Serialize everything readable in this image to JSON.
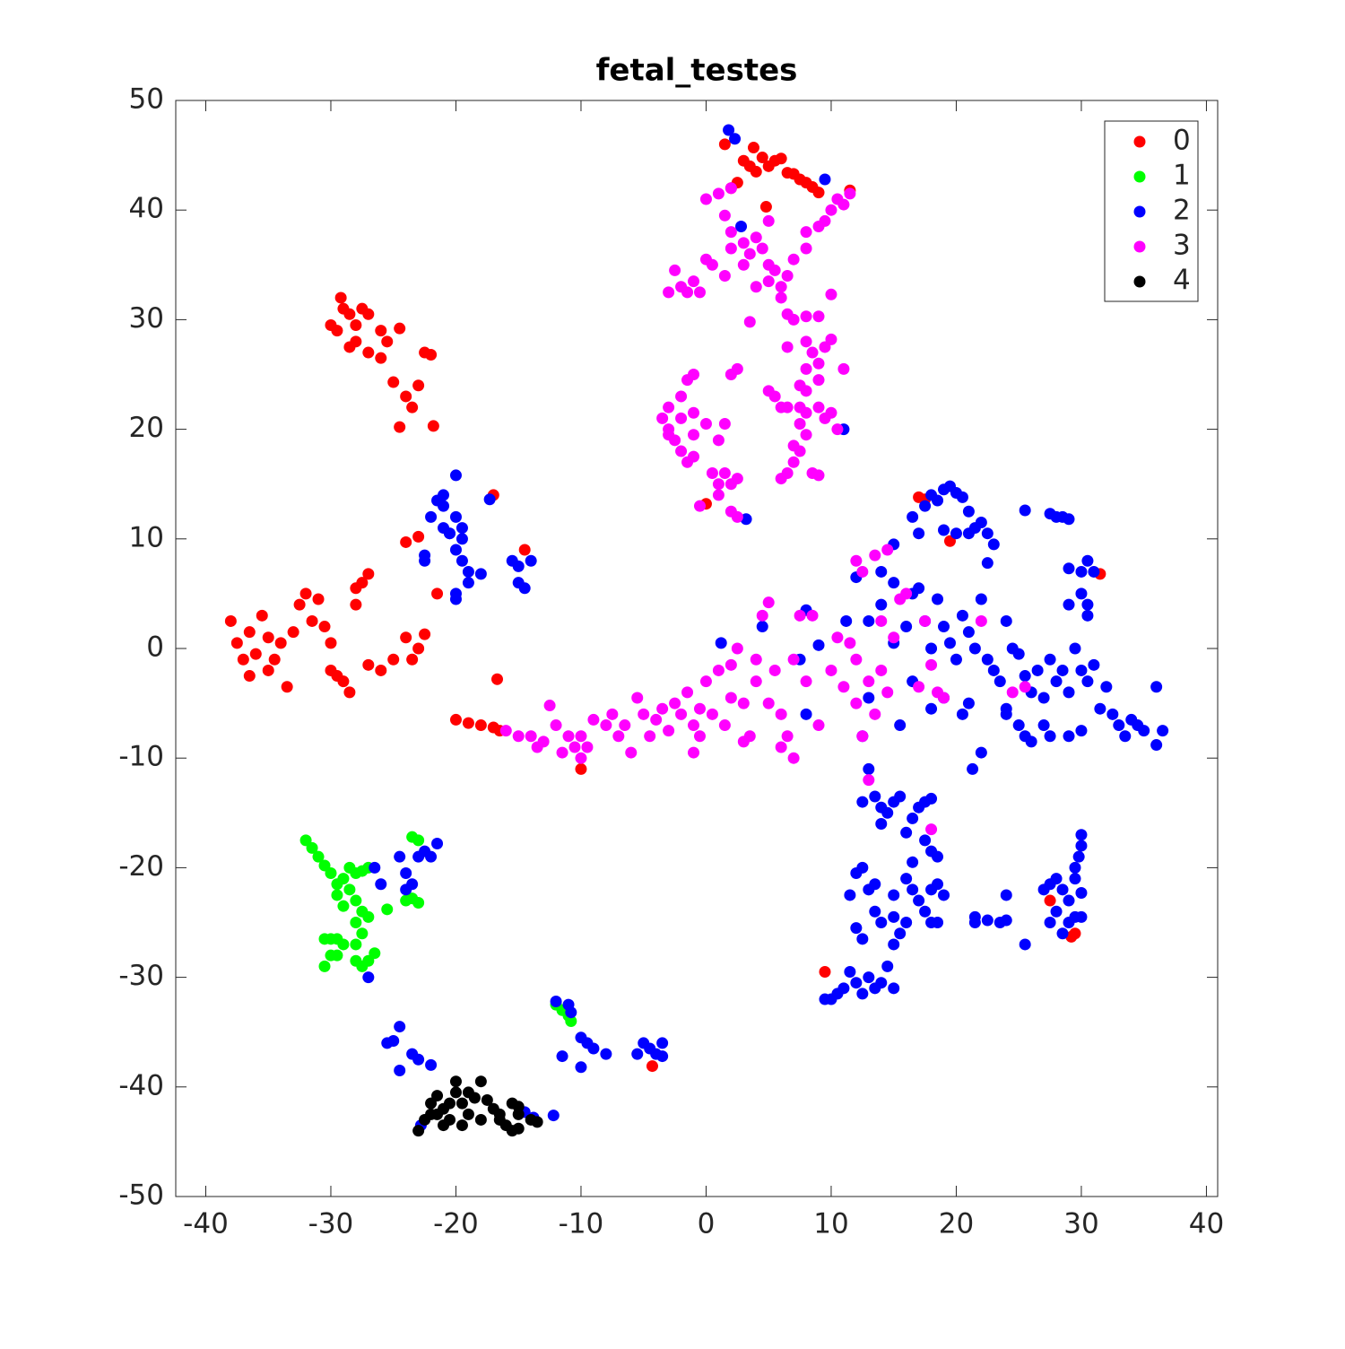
{
  "chart_data": {
    "type": "scatter",
    "title": "fetal_testes",
    "xlim": [
      -42.4,
      40.9
    ],
    "ylim": [
      -50,
      50
    ],
    "xticks": [
      -40,
      -30,
      -20,
      -10,
      0,
      10,
      20,
      30,
      40
    ],
    "yticks": [
      -50,
      -40,
      -30,
      -20,
      -10,
      0,
      10,
      20,
      30,
      40,
      50
    ],
    "grid": false,
    "legend": "upper right",
    "series": [
      {
        "name": "0",
        "color": "#ff0000",
        "x": [
          -29,
          -28.5,
          -28,
          -27.5,
          -29.5,
          -28,
          -27,
          -26,
          -25.5,
          -26,
          -24.5,
          -25,
          -24,
          -23.5,
          -23,
          -22.5,
          -22,
          -21.8,
          -24.5,
          -29.2,
          -30,
          -27,
          -28.5,
          -38,
          -37.5,
          -37,
          -36.5,
          -36,
          -35.5,
          -35,
          -34.5,
          -34,
          -33.5,
          -33,
          -32.5,
          -32,
          -31,
          -30.5,
          -30,
          -29.5,
          -29,
          -28.5,
          -28,
          -27.5,
          -27,
          -28,
          -27,
          -26,
          -25,
          -24,
          -23.5,
          -23,
          -22.5,
          -36.5,
          -35,
          -31.5,
          -30,
          -24,
          -23,
          -21.5,
          -17,
          -14.5,
          -16.7,
          -20,
          -19,
          -18,
          -17,
          -16.5,
          -10,
          0,
          17,
          17.5,
          19.5,
          31.5,
          27.5,
          29.5,
          29.2,
          9.5,
          -4.3,
          1.5,
          3.8,
          3,
          3.5,
          4,
          4.5,
          5,
          5.5,
          6,
          6.5,
          7,
          7.5,
          8,
          8.5,
          2,
          2.5,
          4.8,
          11.5,
          9
        ],
        "y": [
          31,
          30.5,
          29.5,
          31,
          29,
          28,
          30.5,
          29,
          28,
          26.5,
          29.2,
          24.3,
          23,
          22,
          24,
          27,
          26.8,
          20.3,
          20.2,
          32,
          29.5,
          27,
          27.5,
          2.5,
          0.5,
          -1,
          1.5,
          -0.5,
          3,
          1,
          -1,
          0.5,
          -3.5,
          1.5,
          4,
          5,
          4.5,
          2,
          0.5,
          -2.5,
          -3,
          -4,
          5.5,
          6,
          6.8,
          4,
          -1.5,
          -2,
          -1,
          1,
          -1,
          0,
          1.3,
          -2.5,
          -2,
          2.5,
          -2,
          9.7,
          10.2,
          5,
          14,
          9,
          -2.8,
          -6.5,
          -6.8,
          -7,
          -7.2,
          -7.5,
          -11,
          13.2,
          13.8,
          13.6,
          9.8,
          6.8,
          -23,
          -26,
          -26.3,
          -29.5,
          -38.1,
          46,
          45.7,
          44.5,
          44,
          43.5,
          44.8,
          44,
          44.5,
          44.7,
          43.4,
          43.3,
          42.8,
          42.5,
          42.1,
          42,
          42.5,
          40.3,
          41.8,
          41.6
        ]
      },
      {
        "name": "1",
        "color": "#00ff00",
        "x": [
          -32,
          -31.5,
          -31,
          -30.5,
          -30,
          -29.5,
          -29,
          -28.5,
          -28,
          -27.5,
          -27,
          -29.5,
          -29,
          -28.5,
          -28,
          -27.5,
          -27,
          -28,
          -27.5,
          -28,
          -29,
          -29.5,
          -30,
          -30.5,
          -30,
          -30.5,
          -29.5,
          -28,
          -27.5,
          -27,
          -26.5,
          -25.5,
          -24,
          -23.5,
          -23,
          -23.5,
          -23,
          -12,
          -11.5,
          -11,
          -10.8
        ],
        "y": [
          -17.5,
          -18.2,
          -19,
          -19.8,
          -20.5,
          -21.5,
          -21,
          -20,
          -20.5,
          -20.3,
          -20,
          -22.5,
          -23.5,
          -22,
          -23,
          -24,
          -24.5,
          -25,
          -26,
          -27,
          -27,
          -26.5,
          -26.5,
          -26.5,
          -28,
          -29,
          -28,
          -28.5,
          -29,
          -28.5,
          -27.8,
          -23.8,
          -23,
          -22.8,
          -23.2,
          -17.2,
          -17.5,
          -32.5,
          -33,
          -33.5,
          -34
        ]
      },
      {
        "name": "2",
        "color": "#0000ff",
        "x": [
          1.8,
          2.3,
          9.5,
          2.8,
          11,
          3.2,
          -22,
          -21.5,
          -21,
          -21,
          -20.5,
          -20,
          -20,
          -19.5,
          -19.5,
          -19,
          -19,
          -20,
          -20,
          -20,
          -21,
          -22.5,
          -22.5,
          -18,
          -17.3,
          -15.5,
          -15,
          -14,
          -15,
          -14.5,
          -19.5,
          -20.5,
          -26.5,
          -26,
          -24.5,
          -24,
          -24,
          -23,
          -22.5,
          -22,
          -21.5,
          -23.5,
          -27,
          -25.5,
          -25,
          -24.5,
          -23.5,
          -23,
          -22,
          -24.5,
          -22.8,
          -14.5,
          -13.8,
          -12.2,
          -12,
          -11,
          -10.8,
          -10,
          -9.5,
          -9,
          -8,
          -11.5,
          -10,
          -5.5,
          -5,
          -4.5,
          -4,
          -3.5,
          -3.5,
          17,
          16.5,
          17.5,
          18,
          18.5,
          19,
          19.5,
          20,
          20.5,
          21,
          21.5,
          22,
          22.5,
          23,
          22.5,
          21,
          20,
          19,
          25.5,
          27.5,
          28,
          28.5,
          29,
          29,
          30,
          30.5,
          31,
          30,
          30.5,
          30.5,
          29,
          15,
          14,
          12,
          13,
          14,
          15,
          15,
          16,
          16.5,
          17,
          17.5,
          18,
          18.5,
          19,
          19.5,
          20,
          20.5,
          21,
          21.5,
          22,
          22.5,
          23,
          23.5,
          24,
          24.5,
          25,
          25.5,
          26,
          26.5,
          27,
          27.5,
          28,
          28.5,
          29,
          29.5,
          30,
          30.5,
          31,
          31.5,
          32,
          32.5,
          33,
          33.5,
          34,
          34.5,
          35,
          36,
          36.5,
          36,
          24,
          25,
          25.5,
          26,
          27,
          27.5,
          29,
          30,
          18,
          19,
          20.5,
          21,
          22,
          21.3,
          24,
          16.5,
          15.5,
          13,
          12.5,
          8,
          7.5,
          9,
          1.2,
          4.5,
          11.2,
          8,
          13,
          12.5,
          13.5,
          14,
          14.5,
          15,
          15.5,
          14,
          16,
          16.5,
          17,
          17.5,
          18,
          17.5,
          18,
          18.5,
          16.5,
          16,
          16.5,
          17,
          17.5,
          16,
          18,
          18.5,
          19,
          18,
          18.5,
          15.5,
          15,
          14.5,
          14,
          15,
          13.5,
          13,
          12.5,
          12,
          11.5,
          11,
          10.5,
          10,
          9.5,
          11.5,
          12,
          12.5,
          13,
          13.5,
          12,
          12.5,
          13.5,
          14,
          15,
          15,
          21.5,
          21.5,
          22.5,
          23.5,
          24,
          24,
          25.5,
          27,
          27.5,
          28,
          28.5,
          29,
          29.5,
          29.5,
          29.8,
          30,
          30,
          29,
          28.5,
          28,
          27.5,
          30,
          29.5,
          30
        ],
        "y": [
          47.3,
          46.5,
          42.8,
          38.5,
          20,
          11.8,
          12,
          13.5,
          14,
          11,
          10.5,
          12,
          9,
          11,
          8,
          7,
          6,
          5,
          4.5,
          15.8,
          13,
          8.5,
          8,
          6.8,
          13.6,
          8,
          7.5,
          8,
          6,
          5.5,
          10,
          10.5,
          -20,
          -21.5,
          -19,
          -20.5,
          -22,
          -19,
          -18.5,
          -19,
          -17.8,
          -21.5,
          -30,
          -36,
          -35.8,
          -34.5,
          -37,
          -37.5,
          -38,
          -38.5,
          -43.5,
          -42.3,
          -42.8,
          -42.6,
          -32.2,
          -32.5,
          -33.2,
          -35.5,
          -36,
          -36.5,
          -37,
          -37.2,
          -38.2,
          -37,
          -36,
          -36.5,
          -37,
          -36,
          -37.2,
          10.5,
          12,
          13,
          14,
          13.5,
          14.5,
          14.8,
          14.2,
          13.8,
          12.5,
          11,
          11.5,
          10.5,
          9.5,
          7.8,
          10.5,
          10.5,
          10.8,
          12.6,
          12.3,
          12,
          12,
          11.8,
          7.3,
          7,
          8,
          7,
          5,
          4,
          3,
          4,
          9.5,
          7,
          6.5,
          2.5,
          4,
          6,
          0.5,
          2,
          5,
          5.5,
          2.5,
          0,
          4.5,
          2,
          0.5,
          -1,
          3,
          1.5,
          0,
          4.5,
          -1,
          -2,
          -3,
          2.5,
          0,
          -0.5,
          -2.5,
          -4,
          -2,
          -4.5,
          -1,
          -3,
          -2,
          -4,
          0,
          -2,
          -3,
          -1.5,
          -5.5,
          -3.5,
          -6,
          -7,
          -8,
          -6.5,
          -7,
          -7.5,
          -8.8,
          -7.5,
          -3.5,
          -5.5,
          -7,
          -8,
          -8.5,
          -7,
          -8,
          -8,
          -7.5,
          -5.5,
          -4.5,
          -6,
          -5,
          -9.5,
          -11,
          -6,
          -3,
          -7,
          -4.5,
          -8,
          -6,
          -1,
          0.3,
          0.5,
          2,
          2.5,
          3.5,
          -11,
          -14,
          -13.5,
          -14.5,
          -15,
          -14,
          -13.5,
          -16,
          -16.8,
          -15.5,
          -14.5,
          -14,
          -13.7,
          -17.5,
          -18.5,
          -19,
          -19.5,
          -21,
          -22,
          -23,
          -24,
          -25,
          -22,
          -21.5,
          -22.5,
          -25,
          -25,
          -26,
          -27,
          -29,
          -30.5,
          -31,
          -31,
          -30,
          -31.5,
          -30.5,
          -29.5,
          -31,
          -31.5,
          -32,
          -32,
          -22.5,
          -20.5,
          -20,
          -22,
          -21.5,
          -25.5,
          -26.5,
          -24,
          -25,
          -24.5,
          -22.5,
          -24.5,
          -25,
          -24.8,
          -25,
          -24.8,
          -22.5,
          -27,
          -22,
          -21.5,
          -21,
          -22,
          -23,
          -21,
          -20,
          -19,
          -18,
          -17,
          -25,
          -26,
          -24,
          -25,
          -22.3,
          -24.5,
          -24.5
        ]
      },
      {
        "name": "3",
        "color": "#ff00ff",
        "x": [
          0,
          1,
          2,
          1.5,
          2,
          2,
          3,
          3,
          3.5,
          4,
          4.5,
          5,
          5.5,
          5,
          4,
          6,
          6.5,
          -3,
          -2.5,
          -2,
          -1.5,
          -1,
          -0.5,
          0,
          0.5,
          1.5,
          5,
          8,
          9,
          9.5,
          10,
          10.5,
          11,
          11.5,
          8,
          7,
          3.5,
          6,
          6.5,
          7,
          8,
          9,
          10,
          8,
          8.5,
          9,
          9.5,
          10,
          8,
          9,
          11,
          6.5,
          7.5,
          8,
          7.5,
          8,
          9,
          9.5,
          10,
          10.5,
          5,
          5.5,
          6,
          6.5,
          7.5,
          8,
          7,
          7.5,
          7,
          6,
          8.5,
          9,
          6.5,
          2.5,
          2,
          -1,
          -1.5,
          -2,
          -3,
          -3.5,
          -3,
          -2.5,
          -2,
          -1.5,
          -1,
          0,
          -1,
          -2,
          1,
          1.5,
          0.5,
          1,
          1.5,
          2,
          2.5,
          1,
          2,
          2.5,
          -0.5,
          -1,
          -3,
          -16,
          -15,
          -14,
          -13.5,
          -13,
          -12.5,
          -12,
          -11.5,
          -11,
          -10.5,
          -10,
          -10,
          -9.5,
          -9,
          -8,
          -7.5,
          -7,
          -6.5,
          -6,
          -5.5,
          -5,
          -4.5,
          -4,
          -3.5,
          -3,
          -2.5,
          -2,
          -1.5,
          -1,
          -0.5,
          0,
          0.5,
          1,
          1.5,
          2,
          2.5,
          3,
          3.5,
          4,
          4.5,
          5,
          5.5,
          6,
          6.5,
          7,
          7.5,
          5,
          8.5,
          9,
          10,
          10.5,
          11,
          11.5,
          12,
          12,
          12.5,
          13,
          13.5,
          14,
          14.5,
          15,
          14,
          15.5,
          16,
          12,
          12.5,
          13.5,
          14.5,
          17,
          17.5,
          18,
          18.5,
          19,
          22,
          24.5,
          25.5,
          13,
          18,
          -0.5,
          3,
          -1,
          7,
          6,
          4,
          2,
          8
        ],
        "y": [
          41,
          41.5,
          42,
          39.5,
          38,
          36.5,
          37,
          35,
          36,
          37.5,
          36.5,
          35,
          34.5,
          33.5,
          33,
          33,
          34,
          32.5,
          34.5,
          33,
          32.5,
          33.5,
          32.5,
          35.5,
          35,
          34,
          39,
          38,
          38.5,
          39,
          40,
          41,
          40.5,
          41.5,
          36.5,
          35.5,
          29.8,
          32,
          30.5,
          30,
          30.3,
          30.3,
          32.3,
          28,
          27,
          26,
          27.5,
          28.2,
          25.5,
          24.5,
          25.5,
          27.5,
          24,
          23.5,
          22,
          21.5,
          22,
          21,
          21.5,
          20,
          23.5,
          23,
          22,
          22,
          20.5,
          19.5,
          18.5,
          18,
          17,
          15.5,
          16,
          15.8,
          16,
          25.5,
          25,
          25,
          24.5,
          23,
          22,
          21,
          20,
          19,
          18,
          17,
          19.5,
          20.5,
          21.5,
          21,
          19,
          20.5,
          16,
          15,
          16,
          15,
          15.5,
          14,
          12.5,
          12,
          13,
          17.5,
          19.5,
          -7.5,
          -8,
          -8,
          -9,
          -8.5,
          -5.2,
          -7,
          -9.5,
          -8,
          -9,
          -10,
          -8,
          -9,
          -6.5,
          -7,
          -6,
          -8,
          -7,
          -9.5,
          -4.5,
          -6,
          -8,
          -6.5,
          -5.5,
          -7.5,
          -5,
          -6,
          -4,
          -7,
          -5.5,
          -3,
          -6,
          -2,
          -7,
          -4.5,
          0,
          -5,
          -8,
          -3,
          3,
          -5,
          -2,
          -6,
          -8,
          -1,
          3,
          4.2,
          3,
          -7,
          -2,
          1,
          -3.5,
          0.5,
          -1,
          -5,
          -8,
          -3,
          -6,
          -2,
          -4,
          1,
          2.5,
          4.5,
          5,
          8,
          7,
          8.5,
          9,
          -3.5,
          2.5,
          -1.5,
          -4,
          -4.5,
          2.5,
          -4,
          -3.5,
          -12,
          -16.5,
          -8,
          -8.5,
          -9.5,
          -10,
          -9,
          -1,
          -1.5,
          -3
        ]
      },
      {
        "name": "4",
        "color": "#000000",
        "x": [
          -23,
          -22.5,
          -22,
          -22,
          -21.5,
          -21,
          -21,
          -20.5,
          -20,
          -20,
          -19.5,
          -19,
          -19,
          -18.5,
          -18,
          -18,
          -17.5,
          -17,
          -16.5,
          -16,
          -15.5,
          -15.5,
          -15,
          -15,
          -14,
          -13.5,
          -20.5,
          -21.5,
          -19.5,
          -16.5,
          -15
        ],
        "y": [
          -44,
          -43,
          -41.5,
          -42.5,
          -40.8,
          -42,
          -43.5,
          -41.5,
          -40.5,
          -39.5,
          -41.5,
          -42.5,
          -40.5,
          -41,
          -39.5,
          -43,
          -41.2,
          -42,
          -42.5,
          -43.5,
          -41.5,
          -44,
          -42.5,
          -43.8,
          -43,
          -43.2,
          -43,
          -42.5,
          -43.5,
          -43,
          -41.8
        ]
      }
    ]
  }
}
